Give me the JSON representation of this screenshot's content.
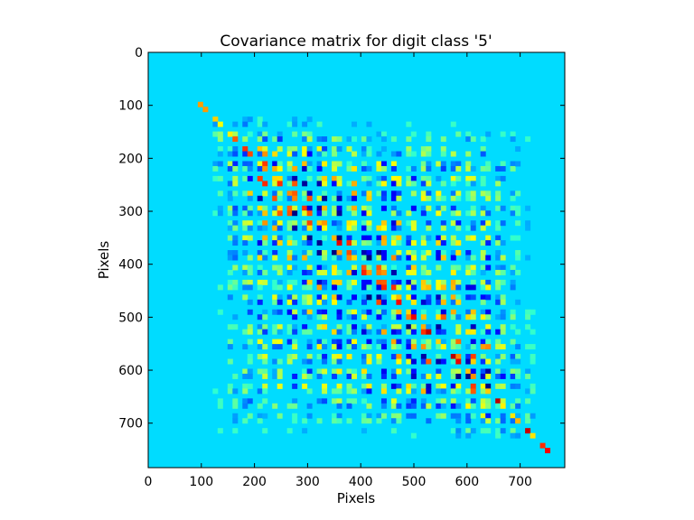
{
  "chart_data": {
    "type": "heatmap",
    "title": "Covariance matrix for digit class '5'",
    "xlabel": "Pixels",
    "ylabel": "Pixels",
    "xlim": [
      0,
      784
    ],
    "ylim": [
      784,
      0
    ],
    "x_ticks": [
      "0",
      "100",
      "200",
      "300",
      "400",
      "500",
      "600",
      "700"
    ],
    "y_ticks": [
      "0",
      "100",
      "200",
      "300",
      "400",
      "500",
      "600",
      "700"
    ],
    "colormap": "jet",
    "background_value_color": "#00dcff",
    "structure": {
      "grid_size": 28,
      "active_pixel_range": [
        90,
        750
      ],
      "diagonal_positive": true
    }
  }
}
